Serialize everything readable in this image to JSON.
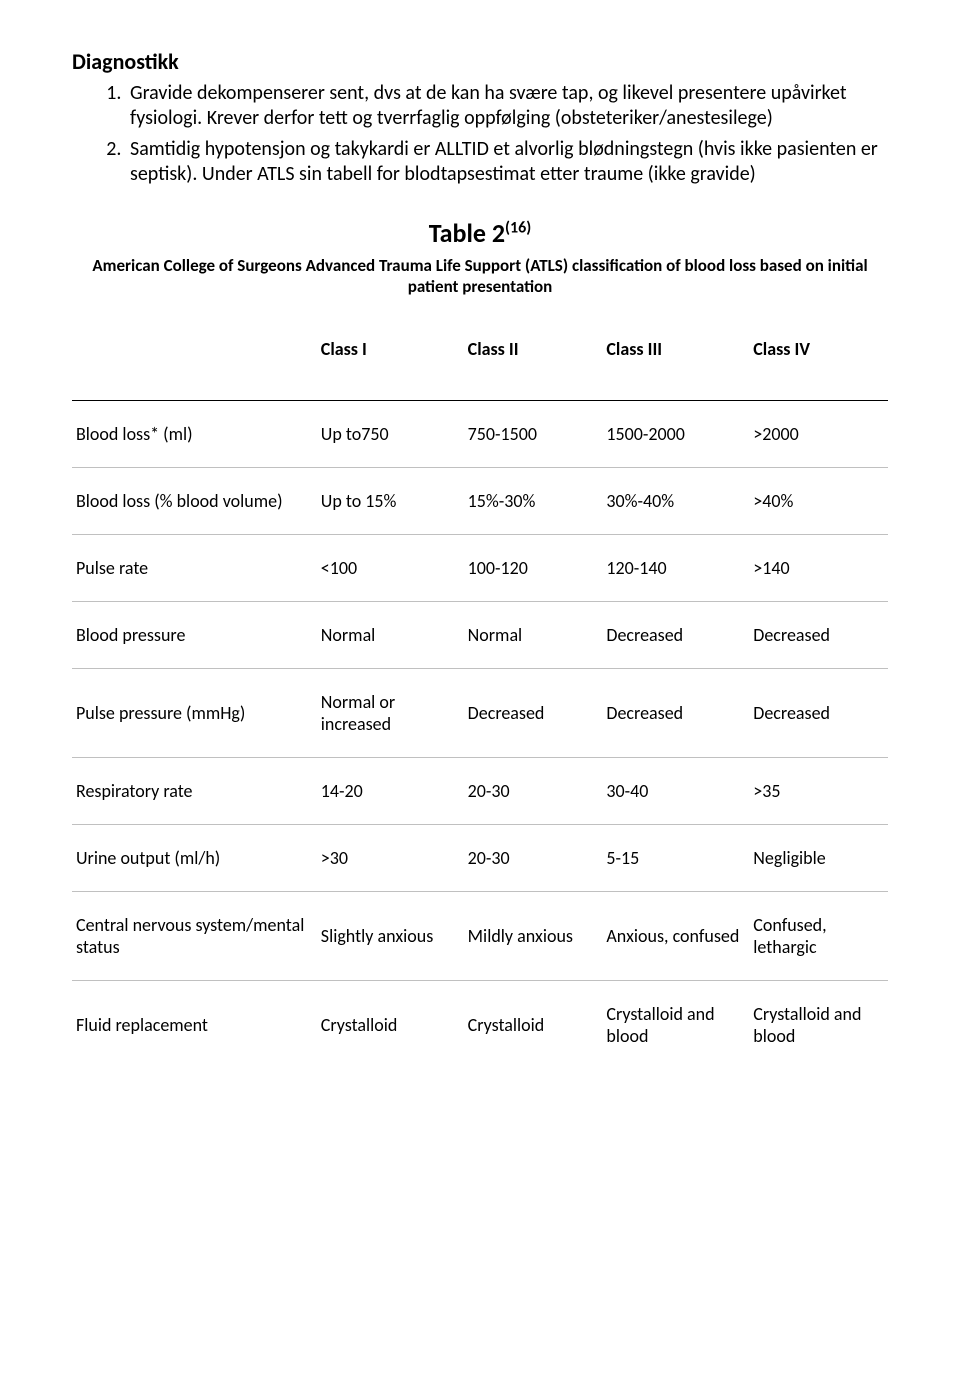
{
  "heading": "Diagnostikk",
  "list": {
    "item1": "Gravide dekompenserer sent, dvs at de kan ha svære tap, og likevel presentere upåvirket fysiologi. Krever derfor tett og tverrfaglig oppfølging (obsteteriker/anestesilege)",
    "item2": "Samtidig hypotensjon og takykardi er ALLTID et alvorlig blødningstegn (hvis ikke pasienten er septisk). Under ATLS sin tabell for blodtapsestimat etter traume (ikke gravide)"
  },
  "table": {
    "title_main": "Table 2",
    "title_sup": "(16)",
    "subtitle": "American College of Surgeons Advanced Trauma Life Support (ATLS) classification of blood loss based on initial patient presentation",
    "columns": {
      "c0": "",
      "c1": "Class I",
      "c2": "Class II",
      "c3": "Class III",
      "c4": "Class IV"
    },
    "rows": {
      "r0": {
        "label": "Blood loss* (ml)",
        "c1": "Up to750",
        "c2": "750-1500",
        "c3": "1500-2000",
        "c4": ">2000"
      },
      "r1": {
        "label": "Blood loss (% blood volume)",
        "c1": "Up to 15%",
        "c2": "15%-30%",
        "c3": "30%-40%",
        "c4": ">40%"
      },
      "r2": {
        "label": "Pulse rate",
        "c1": "<100",
        "c2": "100-120",
        "c3": "120-140",
        "c4": ">140"
      },
      "r3": {
        "label": "Blood pressure",
        "c1": "Normal",
        "c2": "Normal",
        "c3": "Decreased",
        "c4": "Decreased"
      },
      "r4": {
        "label": "Pulse pressure (mmHg)",
        "c1": "Normal or increased",
        "c2": "Decreased",
        "c3": "Decreased",
        "c4": "Decreased"
      },
      "r5": {
        "label": "Respiratory rate",
        "c1": "14-20",
        "c2": "20-30",
        "c3": "30-40",
        "c4": ">35"
      },
      "r6": {
        "label": "Urine output (ml/h)",
        "c1": ">30",
        "c2": "20-30",
        "c3": "5-15",
        "c4": "Negligible"
      },
      "r7": {
        "label": "Central nervous system/mental status",
        "c1": "Slightly anxious",
        "c2": "Mildly anxious",
        "c3": "Anxious, confused",
        "c4": "Confused, lethargic"
      },
      "r8": {
        "label": "Fluid replacement",
        "c1": "Crystalloid",
        "c2": "Crystalloid",
        "c3": "Crystalloid and blood",
        "c4": "Crystalloid and blood"
      }
    }
  },
  "style": {
    "font_family": "Calibri",
    "heading_fontsize": 22,
    "body_fontsize": 20,
    "table_title_fontsize": 26,
    "table_sub_fontsize": 17,
    "table_cell_fontsize": 18,
    "text_color": "#000000",
    "background_color": "#ffffff",
    "rule_color": "#000000",
    "thin_rule_color": "#c0c0c0"
  }
}
